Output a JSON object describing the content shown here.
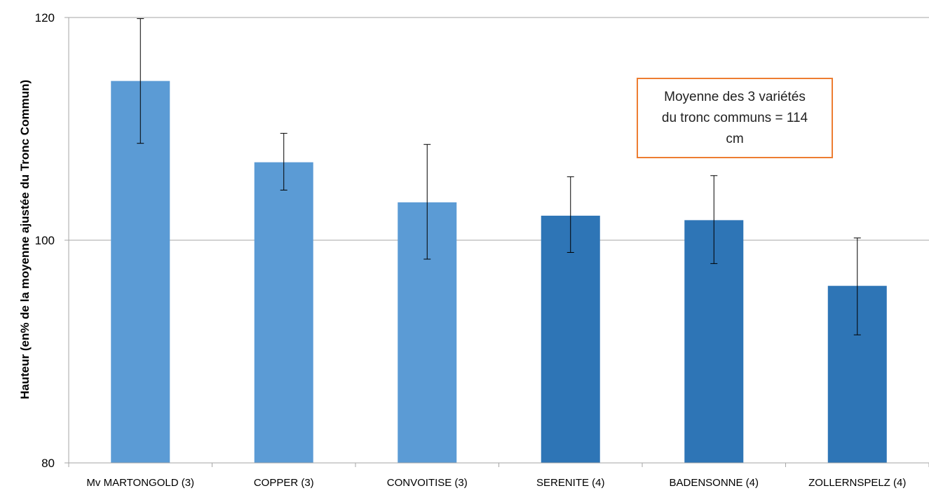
{
  "chart_data": {
    "type": "bar",
    "title": "",
    "xlabel": "",
    "ylabel": "Hauteur (en% de la moyenne ajustée du Tronc Commun)",
    "ylim": [
      80,
      120
    ],
    "yticks": [
      "80",
      "100",
      "120"
    ],
    "grid": true,
    "categories": [
      "Mv MARTONGOLD (3)",
      "COPPER (3)",
      "CONVOITISE (3)",
      "SERENITE (4)",
      "BADENSONNE (4)",
      "ZOLLERNSPELZ (4)"
    ],
    "values": [
      114.3,
      107.0,
      103.4,
      102.2,
      101.8,
      95.9
    ],
    "error_low": [
      108.7,
      104.5,
      98.3,
      98.9,
      97.9,
      91.5
    ],
    "error_high": [
      119.9,
      109.6,
      108.6,
      105.7,
      105.8,
      100.2
    ],
    "bar_colors": [
      "#5B9BD5",
      "#5B9BD5",
      "#5B9BD5",
      "#2E75B6",
      "#2E75B6",
      "#2E75B6"
    ],
    "annotation": "Moyenne des 3 variétés du tronc communs = 114 cm",
    "annotation_border_color": "#ED7D31"
  }
}
